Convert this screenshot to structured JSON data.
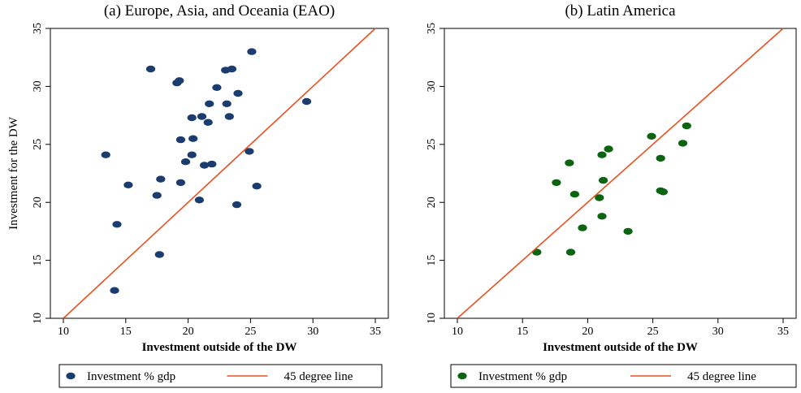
{
  "colors": {
    "line": "#e8501e",
    "eao_marker": "#1a3c6e",
    "latam_marker": "#0a6410",
    "axis": "#000000"
  },
  "chart_data": [
    {
      "type": "scatter",
      "title": "(a) Europe, Asia, and Oceania (EAO)",
      "xlabel": "Investment outside of the DW",
      "ylabel": "Investment for the DW",
      "xlim": [
        10,
        35
      ],
      "ylim": [
        10,
        35
      ],
      "xticks": [
        10,
        15,
        20,
        25,
        30,
        35
      ],
      "yticks": [
        10,
        15,
        20,
        25,
        30,
        35
      ],
      "grid": false,
      "legend": "bottom",
      "series": [
        {
          "name": "Investment % gdp",
          "kind": "scatter",
          "color": "#1a3c6e",
          "points": [
            [
              13.4,
              24.1
            ],
            [
              14.1,
              12.4
            ],
            [
              14.3,
              18.1
            ],
            [
              15.2,
              21.5
            ],
            [
              17.0,
              31.5
            ],
            [
              17.5,
              20.6
            ],
            [
              17.7,
              15.5
            ],
            [
              17.8,
              22.0
            ],
            [
              19.1,
              30.3
            ],
            [
              19.3,
              30.5
            ],
            [
              19.4,
              25.4
            ],
            [
              19.4,
              21.7
            ],
            [
              19.8,
              23.5
            ],
            [
              20.3,
              27.3
            ],
            [
              20.3,
              24.1
            ],
            [
              20.4,
              25.5
            ],
            [
              20.9,
              20.2
            ],
            [
              21.1,
              27.4
            ],
            [
              21.3,
              23.2
            ],
            [
              21.6,
              26.9
            ],
            [
              21.7,
              28.5
            ],
            [
              21.9,
              23.3
            ],
            [
              22.3,
              29.9
            ],
            [
              23.0,
              31.4
            ],
            [
              23.1,
              28.5
            ],
            [
              23.3,
              27.4
            ],
            [
              23.5,
              31.5
            ],
            [
              23.9,
              19.8
            ],
            [
              24.0,
              29.4
            ],
            [
              24.9,
              24.4
            ],
            [
              25.1,
              33.0
            ],
            [
              25.5,
              21.4
            ],
            [
              29.5,
              28.7
            ]
          ]
        },
        {
          "name": "45 degree line",
          "kind": "line",
          "color": "#e8501e",
          "points": [
            [
              10,
              10
            ],
            [
              35,
              35
            ]
          ]
        }
      ]
    },
    {
      "type": "scatter",
      "title": "(b) Latin America",
      "xlabel": "Investment outside of the DW",
      "ylabel": "",
      "xlim": [
        10,
        35
      ],
      "ylim": [
        10,
        35
      ],
      "xticks": [
        10,
        15,
        20,
        25,
        30,
        35
      ],
      "yticks": [
        10,
        15,
        20,
        25,
        30,
        35
      ],
      "grid": false,
      "legend": "bottom",
      "series": [
        {
          "name": "Investment % gdp",
          "kind": "scatter",
          "color": "#0a6410",
          "points": [
            [
              16.1,
              15.7
            ],
            [
              17.6,
              21.7
            ],
            [
              18.6,
              23.4
            ],
            [
              18.7,
              15.7
            ],
            [
              19.0,
              20.7
            ],
            [
              19.6,
              17.8
            ],
            [
              20.9,
              20.4
            ],
            [
              21.1,
              24.1
            ],
            [
              21.1,
              18.8
            ],
            [
              21.2,
              21.9
            ],
            [
              21.6,
              24.6
            ],
            [
              23.1,
              17.5
            ],
            [
              24.9,
              25.7
            ],
            [
              25.6,
              23.8
            ],
            [
              25.6,
              21.0
            ],
            [
              25.8,
              20.9
            ],
            [
              27.3,
              25.1
            ],
            [
              27.6,
              26.6
            ]
          ]
        },
        {
          "name": "45 degree line",
          "kind": "line",
          "color": "#e8501e",
          "points": [
            [
              10,
              10
            ],
            [
              35,
              35
            ]
          ]
        }
      ]
    }
  ]
}
